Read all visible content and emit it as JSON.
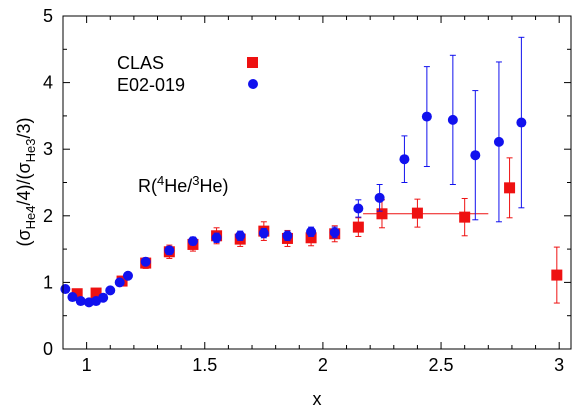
{
  "chart_data": {
    "type": "scatter",
    "xlabel": "x",
    "ylabel": {
      "pre": "(σ",
      "sub1": "He4",
      "mid": "/4)/(σ",
      "sub2": "He3",
      "post": "/3)"
    },
    "annotation": {
      "pre": "R(",
      "sup1": "4",
      "mid": "He/",
      "sup2": "3",
      "post": "He)"
    },
    "xlim": [
      0.9,
      3.05
    ],
    "ylim": [
      0,
      5
    ],
    "x_ticks": [
      1,
      1.5,
      2,
      2.5,
      3
    ],
    "x_tick_labels": [
      "1",
      "1.5",
      "2",
      "2.5",
      "3"
    ],
    "y_ticks": [
      0,
      1,
      2,
      3,
      4,
      5
    ],
    "y_tick_labels": [
      "0",
      "1",
      "2",
      "3",
      "4",
      "5"
    ],
    "legend_position": "top-left",
    "series": [
      {
        "name": "CLAS",
        "color": "#ee1111",
        "marker": "square",
        "points": [
          {
            "x": 0.96,
            "y": 0.83,
            "err": 0.05
          },
          {
            "x": 1.04,
            "y": 0.84,
            "err": 0.05
          },
          {
            "x": 1.15,
            "y": 1.02,
            "err": 0.06
          },
          {
            "x": 1.25,
            "y": 1.29,
            "err": 0.08
          },
          {
            "x": 1.35,
            "y": 1.46,
            "err": 0.1
          },
          {
            "x": 1.45,
            "y": 1.57,
            "err": 0.1
          },
          {
            "x": 1.55,
            "y": 1.7,
            "err": 0.12
          },
          {
            "x": 1.65,
            "y": 1.65,
            "err": 0.11
          },
          {
            "x": 1.75,
            "y": 1.77,
            "err": 0.14
          },
          {
            "x": 1.85,
            "y": 1.66,
            "err": 0.12
          },
          {
            "x": 1.95,
            "y": 1.67,
            "err": 0.12
          },
          {
            "x": 2.05,
            "y": 1.73,
            "err": 0.12
          },
          {
            "x": 2.15,
            "y": 1.83,
            "err": 0.14
          },
          {
            "x": 2.25,
            "y": 2.03,
            "err": 0.21,
            "xerr": [
              2.17,
              2.7
            ]
          },
          {
            "x": 2.4,
            "y": 2.04,
            "err": 0.21
          },
          {
            "x": 2.6,
            "y": 1.98,
            "err": 0.28
          },
          {
            "x": 2.79,
            "y": 2.42,
            "err": 0.45
          },
          {
            "x": 2.99,
            "y": 1.11,
            "err": 0.42
          }
        ]
      },
      {
        "name": "E02-019",
        "color": "#1111ee",
        "marker": "circle",
        "points": [
          {
            "x": 0.91,
            "y": 0.9,
            "err": 0.04
          },
          {
            "x": 0.94,
            "y": 0.78,
            "err": 0.03
          },
          {
            "x": 0.975,
            "y": 0.72,
            "err": 0.03
          },
          {
            "x": 1.01,
            "y": 0.7,
            "err": 0.03
          },
          {
            "x": 1.04,
            "y": 0.72,
            "err": 0.03
          },
          {
            "x": 1.07,
            "y": 0.77,
            "err": 0.03
          },
          {
            "x": 1.1,
            "y": 0.88,
            "err": 0.03
          },
          {
            "x": 1.14,
            "y": 1.0,
            "err": 0.04
          },
          {
            "x": 1.175,
            "y": 1.1,
            "err": 0.04
          },
          {
            "x": 1.25,
            "y": 1.31,
            "err": 0.05
          },
          {
            "x": 1.35,
            "y": 1.48,
            "err": 0.06
          },
          {
            "x": 1.45,
            "y": 1.62,
            "err": 0.06
          },
          {
            "x": 1.55,
            "y": 1.67,
            "err": 0.07
          },
          {
            "x": 1.65,
            "y": 1.7,
            "err": 0.07
          },
          {
            "x": 1.75,
            "y": 1.74,
            "err": 0.07
          },
          {
            "x": 1.85,
            "y": 1.7,
            "err": 0.07
          },
          {
            "x": 1.95,
            "y": 1.76,
            "err": 0.07
          },
          {
            "x": 2.05,
            "y": 1.75,
            "err": 0.08
          },
          {
            "x": 2.15,
            "y": 2.11,
            "err": 0.13
          },
          {
            "x": 2.24,
            "y": 2.27,
            "err": 0.2
          },
          {
            "x": 2.345,
            "y": 2.85,
            "err": 0.35
          },
          {
            "x": 2.44,
            "y": 3.49,
            "err": 0.75
          },
          {
            "x": 2.55,
            "y": 3.44,
            "err": 0.97
          },
          {
            "x": 2.645,
            "y": 2.91,
            "err": 0.97
          },
          {
            "x": 2.745,
            "y": 3.11,
            "err": 1.2
          },
          {
            "x": 2.84,
            "y": 3.4,
            "err": 1.28
          }
        ]
      }
    ]
  }
}
